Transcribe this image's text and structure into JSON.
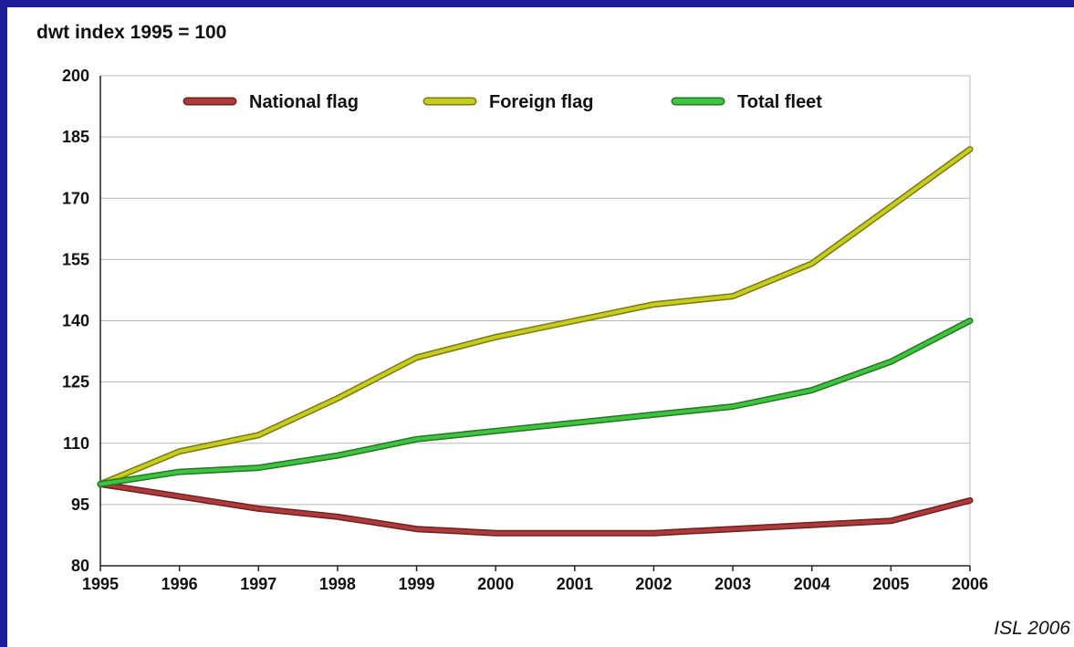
{
  "header": {
    "title": "dwt index 1995 = 100"
  },
  "footer": {
    "source": "ISL 2006"
  },
  "colors": {
    "background_border": "#1e1e9a",
    "grid": "#b8b8b8",
    "axis": "#222222"
  },
  "chart_data": {
    "type": "line",
    "title": "dwt index 1995 = 100",
    "xlabel": "",
    "ylabel": "",
    "x": [
      1995,
      1996,
      1997,
      1998,
      1999,
      2000,
      2001,
      2002,
      2003,
      2004,
      2005,
      2006
    ],
    "xlim": [
      1995,
      2006
    ],
    "ylim": [
      80,
      200
    ],
    "yticks": [
      80,
      95,
      110,
      125,
      140,
      155,
      170,
      185,
      200
    ],
    "grid": true,
    "legend_position": "top",
    "series": [
      {
        "name": "National flag",
        "color": "#b03a3a",
        "values": [
          100,
          97,
          94,
          92,
          89,
          88,
          88,
          88,
          89,
          90,
          91,
          96
        ]
      },
      {
        "name": "Foreign flag",
        "color": "#c8cc1e",
        "values": [
          100,
          108,
          112,
          121,
          131,
          136,
          140,
          144,
          146,
          154,
          168,
          182
        ]
      },
      {
        "name": "Total fleet",
        "color": "#3ec43e",
        "values": [
          100,
          103,
          104,
          107,
          111,
          113,
          115,
          117,
          119,
          123,
          130,
          140
        ]
      }
    ]
  }
}
